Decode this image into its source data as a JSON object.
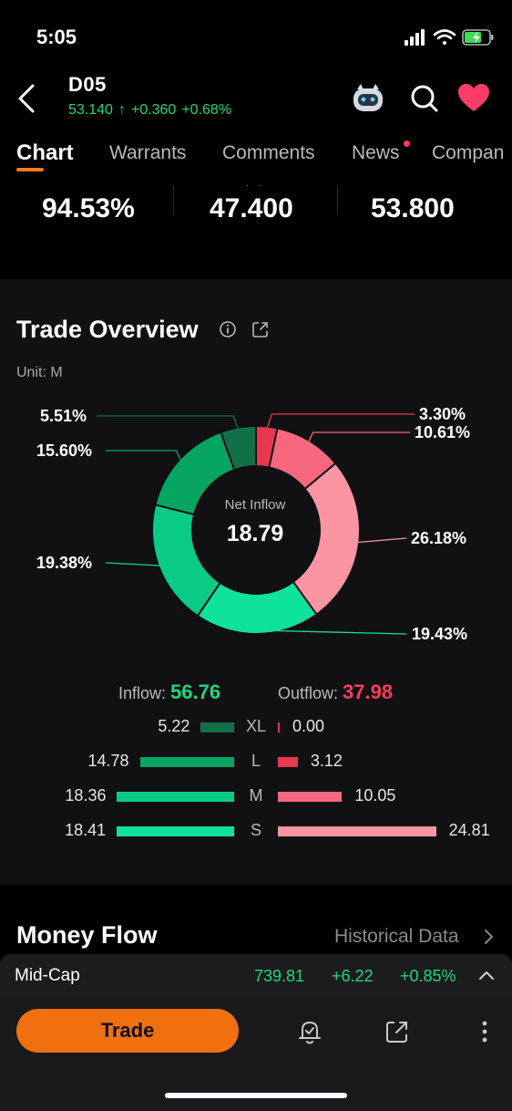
{
  "status_bar": {
    "time": "5:05"
  },
  "header": {
    "ticker": "D05",
    "price": "53.140",
    "arrow": "↑",
    "change": "+0.360",
    "change_pct": "+0.68%"
  },
  "tabs": [
    {
      "label": "Chart",
      "active": true
    },
    {
      "label": "Warrants"
    },
    {
      "label": "Comments"
    },
    {
      "label": "News",
      "has_dot": true
    },
    {
      "label": "Compan"
    }
  ],
  "stats": [
    "94.53%",
    "47.400",
    "53.800"
  ],
  "trade_overview": {
    "title": "Trade Overview",
    "unit": "Unit: M",
    "center_label": "Net Inflow",
    "center_value": "18.79",
    "segments": [
      {
        "label": "3.30%",
        "value": 3.3,
        "color": "#e8384f"
      },
      {
        "label": "10.61%",
        "value": 10.61,
        "color": "#f5687d"
      },
      {
        "label": "26.18%",
        "value": 26.18,
        "color": "#fb95a3"
      },
      {
        "label": "19.43%",
        "value": 19.43,
        "color": "#0fe29a"
      },
      {
        "label": "19.38%",
        "value": 19.38,
        "color": "#0acb85"
      },
      {
        "label": "15.60%",
        "value": 15.6,
        "color": "#06a561"
      },
      {
        "label": "5.51%",
        "value": 5.51,
        "color": "#127049"
      }
    ],
    "inflow_label": "Inflow:",
    "inflow_value": "56.76",
    "outflow_label": "Outflow:",
    "outflow_value": "37.98",
    "rows": [
      {
        "cat": "XL",
        "inflow": "5.22",
        "inflow_num": 5.22,
        "outflow": "0.00",
        "outflow_num": 0.0,
        "in_color": "#127049",
        "out_color": "#e8384f"
      },
      {
        "cat": "L",
        "inflow": "14.78",
        "inflow_num": 14.78,
        "outflow": "3.12",
        "outflow_num": 3.12,
        "in_color": "#06a561",
        "out_color": "#e8384f"
      },
      {
        "cat": "M",
        "inflow": "18.36",
        "inflow_num": 18.36,
        "outflow": "10.05",
        "outflow_num": 10.05,
        "in_color": "#0acb85",
        "out_color": "#f5687d"
      },
      {
        "cat": "S",
        "inflow": "18.41",
        "inflow_num": 18.41,
        "outflow": "24.81",
        "outflow_num": 24.81,
        "in_color": "#0fe29a",
        "out_color": "#fb95a3"
      }
    ]
  },
  "money_flow": {
    "title": "Money Flow",
    "link": "Historical Data"
  },
  "index_bar": {
    "name": "Mid-Cap",
    "value": "739.81",
    "change": "+6.22",
    "change_pct": "+0.85%"
  },
  "bottom_bar": {
    "trade_label": "Trade"
  }
}
